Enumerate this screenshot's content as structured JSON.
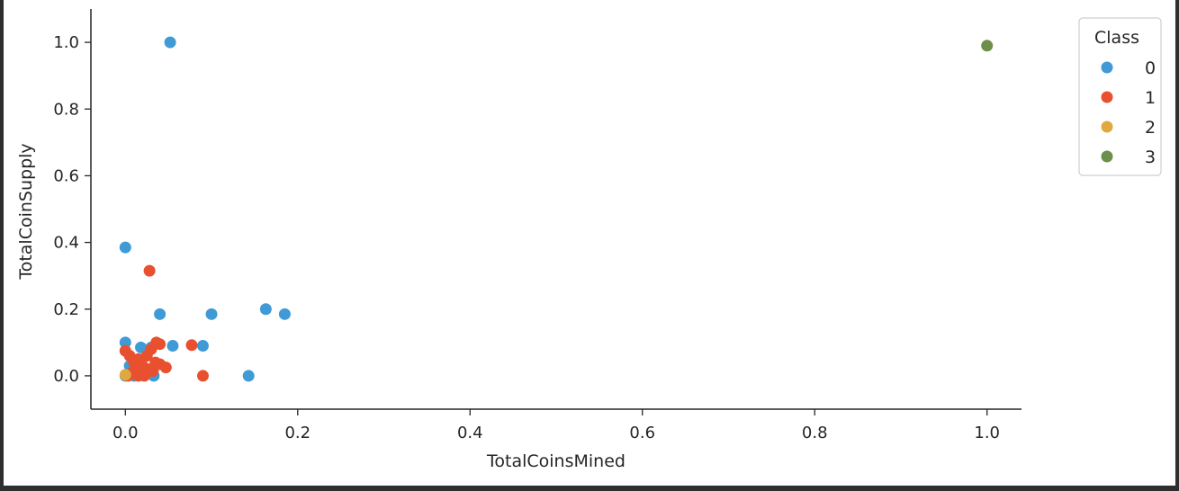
{
  "chart_data": {
    "type": "scatter",
    "xlabel": "TotalCoinsMined",
    "ylabel": "TotalCoinSupply",
    "xlim": [
      -0.04,
      1.04
    ],
    "ylim": [
      -0.1,
      1.1
    ],
    "xticks": [
      "0.0",
      "0.2",
      "0.4",
      "0.6",
      "0.8",
      "1.0"
    ],
    "xtick_values": [
      0,
      0.2,
      0.4,
      0.6,
      0.8,
      1.0
    ],
    "yticks": [
      "0.0",
      "0.2",
      "0.4",
      "0.6",
      "0.8",
      "1.0"
    ],
    "ytick_values": [
      0,
      0.2,
      0.4,
      0.6,
      0.8,
      1.0
    ],
    "grid": false,
    "legend": {
      "title": "Class",
      "placement": "top-right outside"
    },
    "series": [
      {
        "name": "0",
        "color": "#3f9ad6",
        "points": [
          [
            0.052,
            1.0
          ],
          [
            0.0,
            0.385
          ],
          [
            0.04,
            0.185
          ],
          [
            0.1,
            0.185
          ],
          [
            0.163,
            0.2
          ],
          [
            0.185,
            0.185
          ],
          [
            0.0,
            0.1
          ],
          [
            0.018,
            0.085
          ],
          [
            0.03,
            0.085
          ],
          [
            0.055,
            0.09
          ],
          [
            0.09,
            0.09
          ],
          [
            0.143,
            0.0
          ],
          [
            0.0,
            0.0
          ],
          [
            0.01,
            0.0
          ],
          [
            0.02,
            0.005
          ],
          [
            0.033,
            0.0
          ],
          [
            0.005,
            0.03
          ]
        ]
      },
      {
        "name": "1",
        "color": "#e8502f",
        "points": [
          [
            0.028,
            0.315
          ],
          [
            0.036,
            0.1
          ],
          [
            0.04,
            0.095
          ],
          [
            0.077,
            0.092
          ],
          [
            0.047,
            0.025
          ],
          [
            0.09,
            0.0
          ],
          [
            0.0,
            0.075
          ],
          [
            0.005,
            0.06
          ],
          [
            0.01,
            0.04
          ],
          [
            0.015,
            0.05
          ],
          [
            0.02,
            0.03
          ],
          [
            0.025,
            0.06
          ],
          [
            0.03,
            0.08
          ],
          [
            0.035,
            0.04
          ],
          [
            0.04,
            0.035
          ],
          [
            0.012,
            0.02
          ],
          [
            0.018,
            0.01
          ],
          [
            0.022,
            0.0
          ],
          [
            0.028,
            0.02
          ],
          [
            0.008,
            0.01
          ],
          [
            0.003,
            0.0
          ],
          [
            0.015,
            0.0
          ],
          [
            0.025,
            0.01
          ],
          [
            0.032,
            0.015
          ]
        ]
      },
      {
        "name": "2",
        "color": "#e0a940",
        "points": [
          [
            0.0,
            0.003
          ]
        ]
      },
      {
        "name": "3",
        "color": "#6e8f4b",
        "points": [
          [
            1.0,
            0.99
          ]
        ]
      }
    ]
  }
}
